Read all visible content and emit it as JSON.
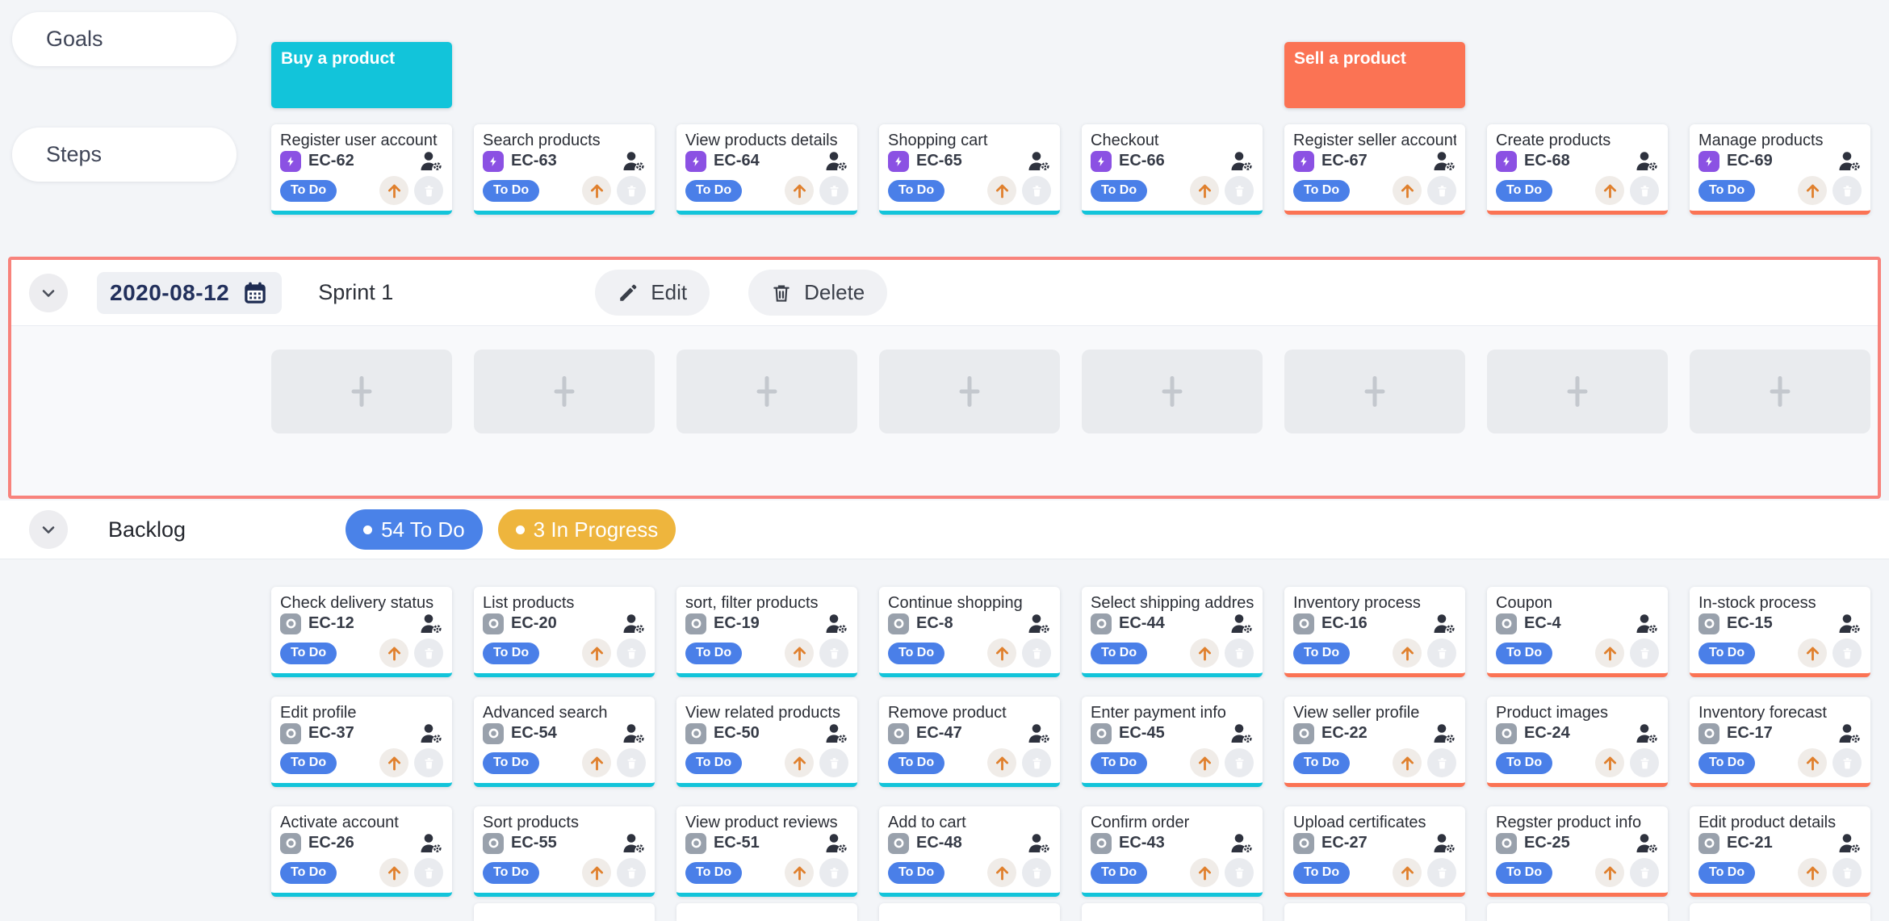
{
  "palette": {
    "page_bg": "#f3f5f8",
    "cyan": "#12c4da",
    "tomato": "#fb7354",
    "purple": "#8b51e3",
    "story_gray": "#99a1ac",
    "status_blue": "#4a7fe8",
    "badge_blue": "#4a82e8",
    "badge_yellow": "#eeb53d",
    "arrow_orange": "#e0802d",
    "sprint_border": "#f8837c",
    "calendar_navy": "#1e2c52"
  },
  "row_labels": {
    "goals": "Goals",
    "steps": "Steps"
  },
  "goals": [
    {
      "title": "Buy a product",
      "column": 1,
      "color": "cyan"
    },
    {
      "title": "Sell a product",
      "column": 6,
      "color": "tomato"
    }
  ],
  "steps": [
    {
      "title": "Register user account",
      "id": "EC-62",
      "status": "To Do",
      "type": "bolt",
      "color": "cyan"
    },
    {
      "title": "Search products",
      "id": "EC-63",
      "status": "To Do",
      "type": "bolt",
      "color": "cyan"
    },
    {
      "title": "View products details",
      "id": "EC-64",
      "status": "To Do",
      "type": "bolt",
      "color": "cyan"
    },
    {
      "title": "Shopping cart",
      "id": "EC-65",
      "status": "To Do",
      "type": "bolt",
      "color": "cyan"
    },
    {
      "title": "Checkout",
      "id": "EC-66",
      "status": "To Do",
      "type": "bolt",
      "color": "cyan"
    },
    {
      "title": "Register seller account",
      "id": "EC-67",
      "status": "To Do",
      "type": "bolt",
      "color": "tomato"
    },
    {
      "title": "Create products",
      "id": "EC-68",
      "status": "To Do",
      "type": "bolt",
      "color": "tomato"
    },
    {
      "title": "Manage products",
      "id": "EC-69",
      "status": "To Do",
      "type": "bolt",
      "color": "tomato"
    }
  ],
  "sprint": {
    "date": "2020-08-12",
    "name": "Sprint 1",
    "edit_label": "Edit",
    "delete_label": "Delete",
    "placeholder_count": 8
  },
  "backlog": {
    "title": "Backlog",
    "badges": [
      {
        "label": "54 To Do",
        "color": "badge_blue"
      },
      {
        "label": "3 In Progress",
        "color": "badge_yellow"
      }
    ],
    "rows": [
      [
        {
          "title": "Check delivery status",
          "id": "EC-12",
          "status": "To Do",
          "type": "story",
          "color": "cyan"
        },
        {
          "title": "List products",
          "id": "EC-20",
          "status": "To Do",
          "type": "story",
          "color": "cyan"
        },
        {
          "title": "sort, filter products",
          "id": "EC-19",
          "status": "To Do",
          "type": "story",
          "color": "cyan"
        },
        {
          "title": "Continue shopping",
          "id": "EC-8",
          "status": "To Do",
          "type": "story",
          "color": "cyan"
        },
        {
          "title": "Select shipping address",
          "id": "EC-44",
          "status": "To Do",
          "type": "story",
          "color": "cyan"
        },
        {
          "title": "Inventory process",
          "id": "EC-16",
          "status": "To Do",
          "type": "story",
          "color": "tomato"
        },
        {
          "title": "Coupon",
          "id": "EC-4",
          "status": "To Do",
          "type": "story",
          "color": "tomato"
        },
        {
          "title": "In-stock process",
          "id": "EC-15",
          "status": "To Do",
          "type": "story",
          "color": "tomato"
        }
      ],
      [
        {
          "title": "Edit profile",
          "id": "EC-37",
          "status": "To Do",
          "type": "story",
          "color": "cyan"
        },
        {
          "title": "Advanced search",
          "id": "EC-54",
          "status": "To Do",
          "type": "story",
          "color": "cyan"
        },
        {
          "title": "View related products",
          "id": "EC-50",
          "status": "To Do",
          "type": "story",
          "color": "cyan"
        },
        {
          "title": "Remove product",
          "id": "EC-47",
          "status": "To Do",
          "type": "story",
          "color": "cyan"
        },
        {
          "title": "Enter payment info",
          "id": "EC-45",
          "status": "To Do",
          "type": "story",
          "color": "cyan"
        },
        {
          "title": "View seller profile",
          "id": "EC-22",
          "status": "To Do",
          "type": "story",
          "color": "tomato"
        },
        {
          "title": "Product images",
          "id": "EC-24",
          "status": "To Do",
          "type": "story",
          "color": "tomato"
        },
        {
          "title": "Inventory forecast",
          "id": "EC-17",
          "status": "To Do",
          "type": "story",
          "color": "tomato"
        }
      ],
      [
        {
          "title": "Activate account",
          "id": "EC-26",
          "status": "To Do",
          "type": "story",
          "color": "cyan"
        },
        {
          "title": "Sort products",
          "id": "EC-55",
          "status": "To Do",
          "type": "story",
          "color": "cyan"
        },
        {
          "title": "View product reviews",
          "id": "EC-51",
          "status": "To Do",
          "type": "story",
          "color": "cyan"
        },
        {
          "title": "Add to cart",
          "id": "EC-48",
          "status": "To Do",
          "type": "story",
          "color": "cyan"
        },
        {
          "title": "Confirm order",
          "id": "EC-43",
          "status": "To Do",
          "type": "story",
          "color": "cyan"
        },
        {
          "title": "Upload certificates",
          "id": "EC-27",
          "status": "To Do",
          "type": "story",
          "color": "tomato"
        },
        {
          "title": "Regster product info",
          "id": "EC-25",
          "status": "To Do",
          "type": "story",
          "color": "tomato"
        },
        {
          "title": "Edit product details",
          "id": "EC-21",
          "status": "To Do",
          "type": "story",
          "color": "tomato"
        }
      ]
    ],
    "partial_row_columns": [
      2,
      3,
      4,
      5,
      6,
      7,
      8
    ]
  }
}
